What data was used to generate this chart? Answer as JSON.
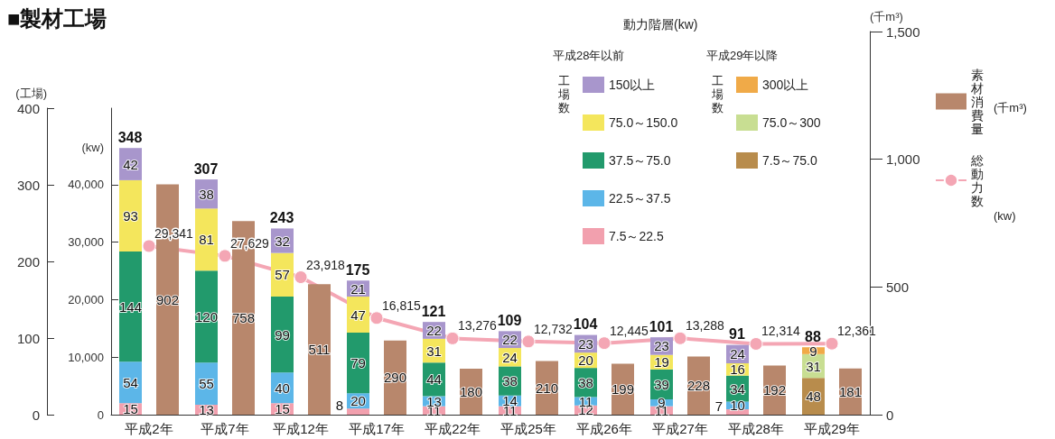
{
  "chart_data": {
    "type": "bar",
    "title": "■製材工場",
    "ylabel": "(工場)",
    "y2label": "(千m³)",
    "y3label": "(kw)",
    "legend_title": "動力階層(kw)",
    "legend": "top right",
    "stacked": true,
    "data_labels": true,
    "marker": "circle",
    "categories": [
      "平成2年",
      "平成7年",
      "平成12年",
      "平成17年",
      "平成22年",
      "平成25年",
      "平成26年",
      "平成27年",
      "平成28年",
      "平成29年"
    ],
    "ylim": [
      0,
      400
    ],
    "yticks": [
      0,
      100,
      200,
      300,
      400
    ],
    "y2lim": [
      0,
      1500
    ],
    "y2ticks": [
      0,
      {
        "value": 500,
        "label": "500"
      },
      {
        "value": 1000,
        "label": "1,000"
      },
      {
        "value": 1500,
        "label": "1,500"
      }
    ],
    "y3lim": [
      0,
      53333
    ],
    "y3ticks": [
      0,
      {
        "value": 10000,
        "label": "10,000"
      },
      {
        "value": 20000,
        "label": "20,000"
      },
      {
        "value": 30000,
        "label": "30,000"
      },
      {
        "value": 40000,
        "label": "40,000"
      }
    ],
    "series": [
      {
        "name": "7.5～22.5",
        "color": "#f2a0ae",
        "values": [
          15,
          13,
          15,
          8,
          11,
          11,
          12,
          11,
          7,
          null
        ]
      },
      {
        "name": "22.5～37.5",
        "color": "#5cb6e8",
        "values": [
          54,
          55,
          40,
          20,
          13,
          14,
          11,
          9,
          10,
          null
        ]
      },
      {
        "name": "37.5～75.0",
        "color": "#229a6c",
        "values": [
          144,
          120,
          99,
          79,
          44,
          38,
          38,
          39,
          34,
          null
        ]
      },
      {
        "name": "75.0～150.0",
        "color": "#f4e65c",
        "values": [
          93,
          81,
          57,
          47,
          31,
          24,
          20,
          19,
          16,
          null
        ]
      },
      {
        "name": "150以上",
        "color": "#a896cc",
        "values": [
          42,
          38,
          32,
          21,
          22,
          22,
          23,
          23,
          24,
          null
        ]
      },
      {
        "name": "7.5～75.0",
        "color": "#b88c4c",
        "values": [
          null,
          null,
          null,
          null,
          null,
          null,
          null,
          null,
          null,
          48
        ]
      },
      {
        "name": "75.0～300",
        "color": "#c8de92",
        "values": [
          null,
          null,
          null,
          null,
          null,
          null,
          null,
          null,
          null,
          31
        ]
      },
      {
        "name": "300以上",
        "color": "#f0aa48",
        "values": [
          null,
          null,
          null,
          null,
          null,
          null,
          null,
          null,
          null,
          9
        ]
      },
      {
        "name": "素材消費量",
        "color": "#b8876c",
        "axis": "y2",
        "values": [
          902,
          758,
          511,
          290,
          180,
          210,
          199,
          228,
          192,
          181
        ]
      },
      {
        "name": "総動力数",
        "type": "line",
        "color": "#f4a6b4",
        "axis": "y3",
        "values": [
          29341,
          27629,
          23918,
          16815,
          13276,
          12732,
          12445,
          13288,
          12314,
          12361
        ],
        "value_labels": [
          "29,341",
          "27,629",
          "23,918",
          "16,815",
          "13,276",
          "12,732",
          "12,445",
          "13,288",
          "12,314",
          "12,361"
        ]
      }
    ],
    "totals": [
      "348",
      "307",
      "243",
      "175",
      "121",
      "109",
      "104",
      "101",
      "91",
      "88"
    ],
    "annotations": [
      "平成28年以前",
      "平成29年以降",
      "工場数",
      "工場数",
      "(千m³)",
      "(kw)"
    ]
  }
}
